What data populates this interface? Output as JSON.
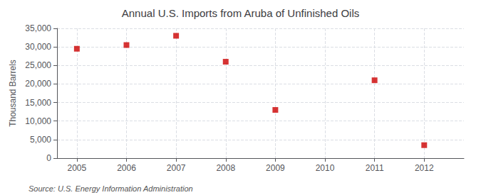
{
  "chart_data": {
    "type": "scatter",
    "title": "Annual U.S. Imports from Aruba of Unfinished Oils",
    "ylabel": "Thousand Barrels",
    "annotations": [
      "Source: U.S. Energy Information Administration"
    ],
    "x": [
      2005,
      2006,
      2007,
      2008,
      2009,
      2011,
      2012
    ],
    "values": [
      29500,
      30500,
      33000,
      26000,
      13000,
      21000,
      3500
    ],
    "color": "#CC0000",
    "marker": "square",
    "xlim": [
      2004.6,
      2012.8
    ],
    "xticks": [
      2005,
      2006,
      2007,
      2008,
      2009,
      2010,
      2011,
      2012
    ],
    "ylim": [
      0,
      35000
    ],
    "yticks": [
      0,
      {
        "value": 5000,
        "label": "5,000"
      },
      {
        "value": 10000,
        "label": "10,000"
      },
      {
        "value": 15000,
        "label": "15,000"
      },
      {
        "value": 20000,
        "label": "20,000"
      },
      {
        "value": 25000,
        "label": "25,000"
      },
      {
        "value": 30000,
        "label": "30,000"
      },
      {
        "value": 35000,
        "label": "35,000"
      }
    ],
    "grid": true
  }
}
